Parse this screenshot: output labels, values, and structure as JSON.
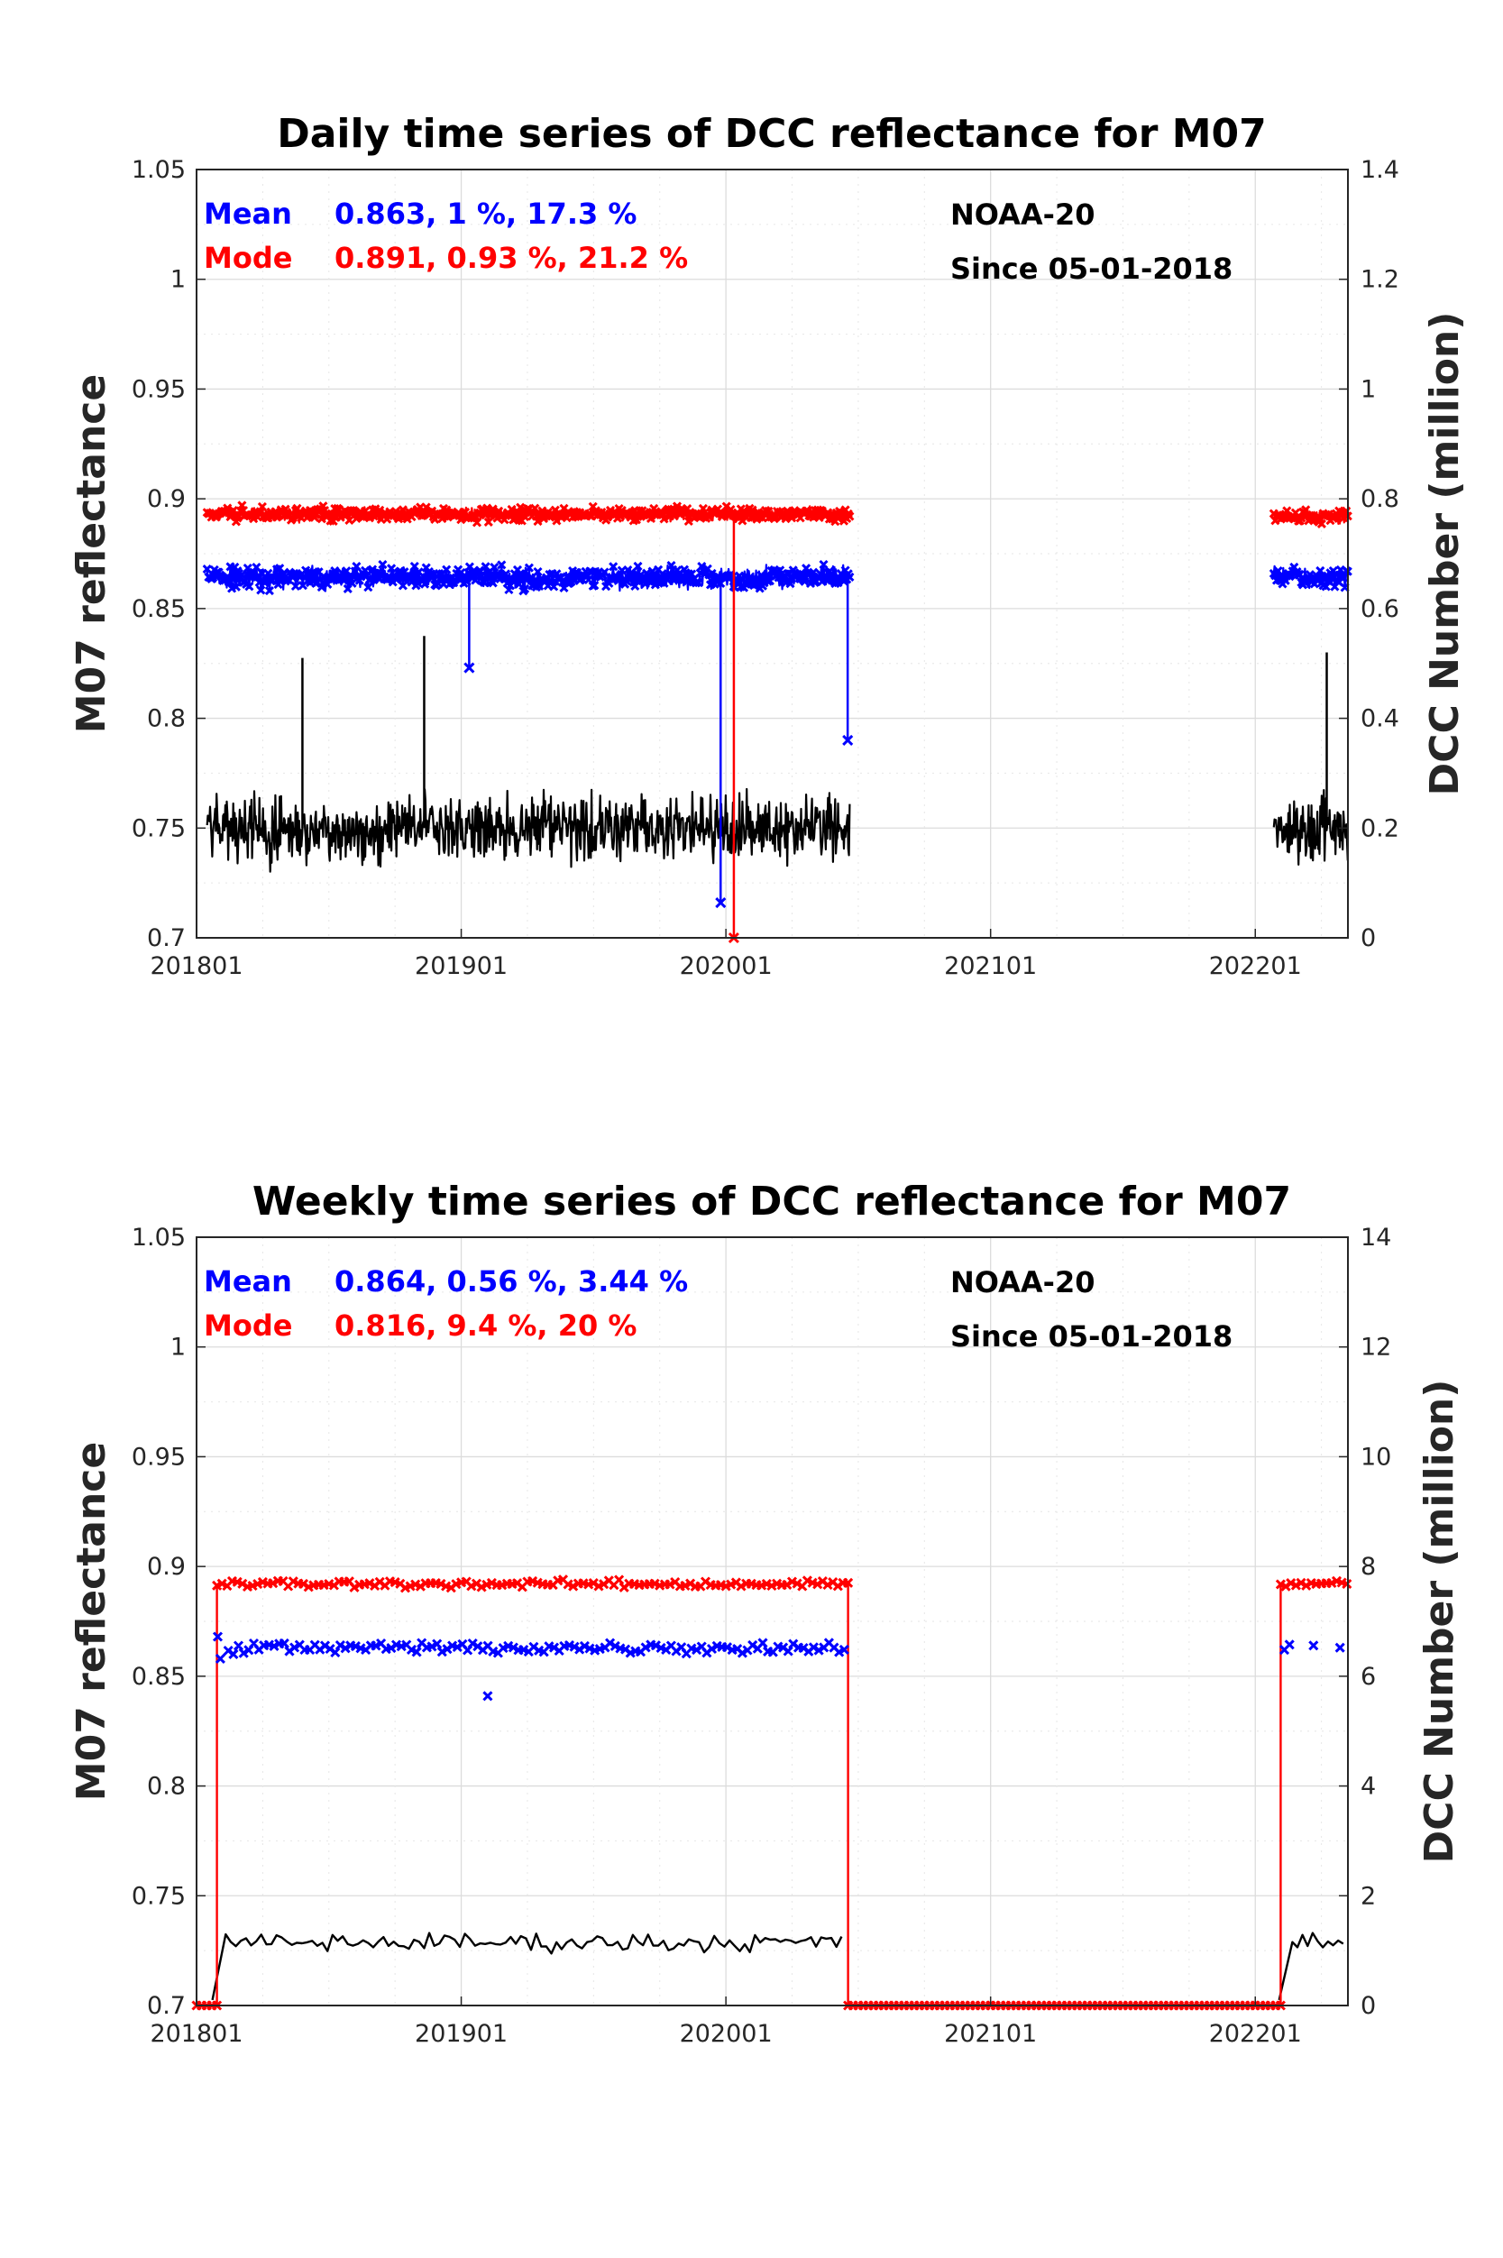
{
  "chart_data": [
    {
      "type": "line",
      "title": "Daily time series of DCC reflectance for M07",
      "ylabel": "M07 reflectance",
      "y2label": "DCC Number (million)",
      "xticks": [
        "201801",
        "201901",
        "202001",
        "202101",
        "202201"
      ],
      "xlim": [
        2018.0,
        2022.35
      ],
      "ylim": [
        0.7,
        1.05
      ],
      "yticks": [
        "0.7",
        "0.75",
        "0.8",
        "0.85",
        "0.9",
        "0.95",
        "1",
        "1.05"
      ],
      "y2lim": [
        0,
        1.4
      ],
      "y2ticks": [
        "0",
        "0.2",
        "0.4",
        "0.6",
        "0.8",
        "1",
        "1.2",
        "1.4"
      ],
      "grid": true,
      "legend": {
        "mean": {
          "label": "Mean",
          "stats": "0.863, 1 %, 17.3 %"
        },
        "mode": {
          "label": "Mode",
          "stats": "0.891, 0.93 %, 21.2 %"
        }
      },
      "annotations": {
        "satellite": "NOAA-20",
        "since": "Since 05-01-2018"
      },
      "colors": {
        "mean": "#0000ff",
        "mode": "#ff0000",
        "count": "#000000"
      },
      "segments": [
        {
          "start": 2018.04,
          "end": 2020.47,
          "mode_level": 0.893,
          "mode_noise": 0.0045,
          "mean_level": 0.864,
          "mean_noise": 0.007,
          "count_level": 0.2,
          "count_noise": 0.06
        },
        {
          "start": 2022.07,
          "end": 2022.35,
          "mode_level": 0.892,
          "mode_noise": 0.0045,
          "mean_level": 0.864,
          "mean_noise": 0.007,
          "count_level": 0.2,
          "count_noise": 0.06
        }
      ],
      "daily_step": 0.00274,
      "outliers": [
        {
          "series": "mean",
          "x": 2019.03,
          "y": 0.823
        },
        {
          "series": "mean",
          "x": 2019.98,
          "y": 0.716
        },
        {
          "series": "mode",
          "x": 2020.03,
          "y": 0.7
        },
        {
          "series": "mean",
          "x": 2020.46,
          "y": 0.79
        },
        {
          "series": "count",
          "x": 2018.4,
          "y": 0.51
        },
        {
          "series": "count",
          "x": 2018.86,
          "y": 0.55
        },
        {
          "series": "count",
          "x": 2022.27,
          "y": 0.52
        }
      ]
    },
    {
      "type": "line",
      "title": "Weekly time series of DCC reflectance for M07",
      "ylabel": "M07 reflectance",
      "y2label": "DCC Number (million)",
      "xticks": [
        "201801",
        "201901",
        "202001",
        "202101",
        "202201"
      ],
      "xlim": [
        2018.0,
        2022.35
      ],
      "ylim": [
        0.7,
        1.05
      ],
      "yticks": [
        "0.7",
        "0.75",
        "0.8",
        "0.85",
        "0.9",
        "0.95",
        "1",
        "1.05"
      ],
      "y2lim": [
        0,
        14
      ],
      "y2ticks": [
        "0",
        "2",
        "4",
        "6",
        "8",
        "10",
        "12",
        "14"
      ],
      "grid": true,
      "legend": {
        "mean": {
          "label": "Mean",
          "stats": "0.864, 0.56 %, 3.44 %"
        },
        "mode": {
          "label": "Mode",
          "stats": "0.816, 9.4 %, 20 %"
        }
      },
      "annotations": {
        "satellite": "NOAA-20",
        "since": "Since 05-01-2018"
      },
      "colors": {
        "mean": "#0000ff",
        "mode": "#ff0000",
        "count": "#000000"
      },
      "weekly_step": 0.01923,
      "mode_series": {
        "gap_value": 0.7,
        "active": [
          [
            2018.07,
            2020.46
          ],
          [
            2022.09,
            2022.35
          ]
        ],
        "level": 0.892,
        "noise": 0.0025,
        "range": [
          2018.0,
          2022.35
        ]
      },
      "mean_series": {
        "active": [
          [
            2018.12,
            2020.46
          ],
          [
            2022.11,
            2022.14
          ]
        ],
        "level": 0.863,
        "noise": 0.004,
        "extra_points": [
          {
            "x": 2018.08,
            "y": 0.868
          },
          {
            "x": 2018.09,
            "y": 0.858
          },
          {
            "x": 2019.1,
            "y": 0.841
          },
          {
            "x": 2022.22,
            "y": 0.864
          },
          {
            "x": 2022.32,
            "y": 0.863
          }
        ]
      },
      "count_series": {
        "segments": [
          [
            2018.06,
            2020.45
          ],
          [
            2022.09,
            2022.35
          ]
        ],
        "level": 1.15,
        "noise": 0.25
      }
    }
  ]
}
